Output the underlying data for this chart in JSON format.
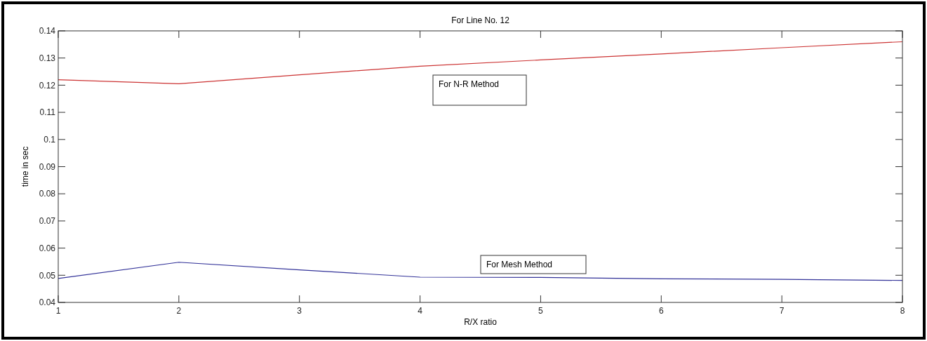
{
  "chart_data": {
    "type": "line",
    "title": "For Line No. 12",
    "xlabel": "R/X ratio",
    "ylabel": "time in sec",
    "x": [
      1,
      2,
      3,
      4,
      5,
      6,
      7,
      8
    ],
    "series": [
      {
        "name": "For N-R Method",
        "color": "#cc3333",
        "values": [
          0.122,
          0.1205,
          0.1238,
          0.127,
          0.1293,
          0.1315,
          0.1338,
          0.136
        ]
      },
      {
        "name": "For Mesh Method",
        "color": "#333399",
        "values": [
          0.0488,
          0.0548,
          0.052,
          0.0493,
          0.0492,
          0.0487,
          0.0485,
          0.0481
        ]
      }
    ],
    "xlim": [
      1,
      8
    ],
    "xticks": [
      1,
      2,
      3,
      4,
      5,
      6,
      7,
      8
    ],
    "ylim": [
      0.04,
      0.14
    ],
    "yticks": [
      0.04,
      0.05,
      0.06,
      0.07,
      0.08,
      0.09,
      {
        "value": 0.1,
        "label": "0.1"
      },
      0.11,
      0.12,
      0.13,
      0.14
    ],
    "grid": false,
    "legend": false,
    "marker": "none",
    "line_style": "solid"
  }
}
